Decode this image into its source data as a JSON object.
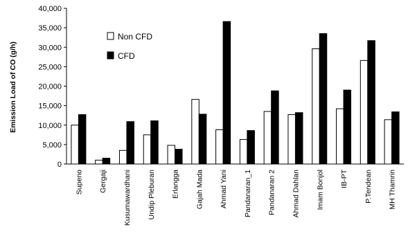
{
  "chart_data": {
    "type": "bar",
    "title": "",
    "xlabel": "",
    "ylabel": "Emission Load of CO (g/h)",
    "ylim": [
      0,
      40000
    ],
    "yticks": [
      "0",
      "5,000",
      "10,000",
      "15,000",
      "20,000",
      "25,000",
      "30,000",
      "35,000",
      "40,000"
    ],
    "grid": false,
    "legend_position": "top-left",
    "categories": [
      "Supeno",
      "Gergaji",
      "Kusumawardhani",
      "Undip Pleburan",
      "Erlangga",
      "Gajah Mada",
      "Ahmad Yani",
      "Pandanaran_1",
      "Pandanaran 2",
      "Ahmad Dahlan",
      "Imam Bonjol",
      "IB-PT",
      "P.Tendean",
      "MH Thamrin"
    ],
    "series": [
      {
        "name": "Non CFD",
        "color": "#ffffff",
        "values": [
          10000,
          1000,
          3500,
          7500,
          4800,
          16600,
          8800,
          6300,
          13500,
          12700,
          29600,
          14200,
          26600,
          11400
        ]
      },
      {
        "name": "CFD",
        "color": "#000000",
        "values": [
          12700,
          1500,
          10900,
          11100,
          3800,
          12800,
          36600,
          8600,
          18800,
          13200,
          33500,
          19000,
          31700,
          13400
        ]
      }
    ]
  }
}
